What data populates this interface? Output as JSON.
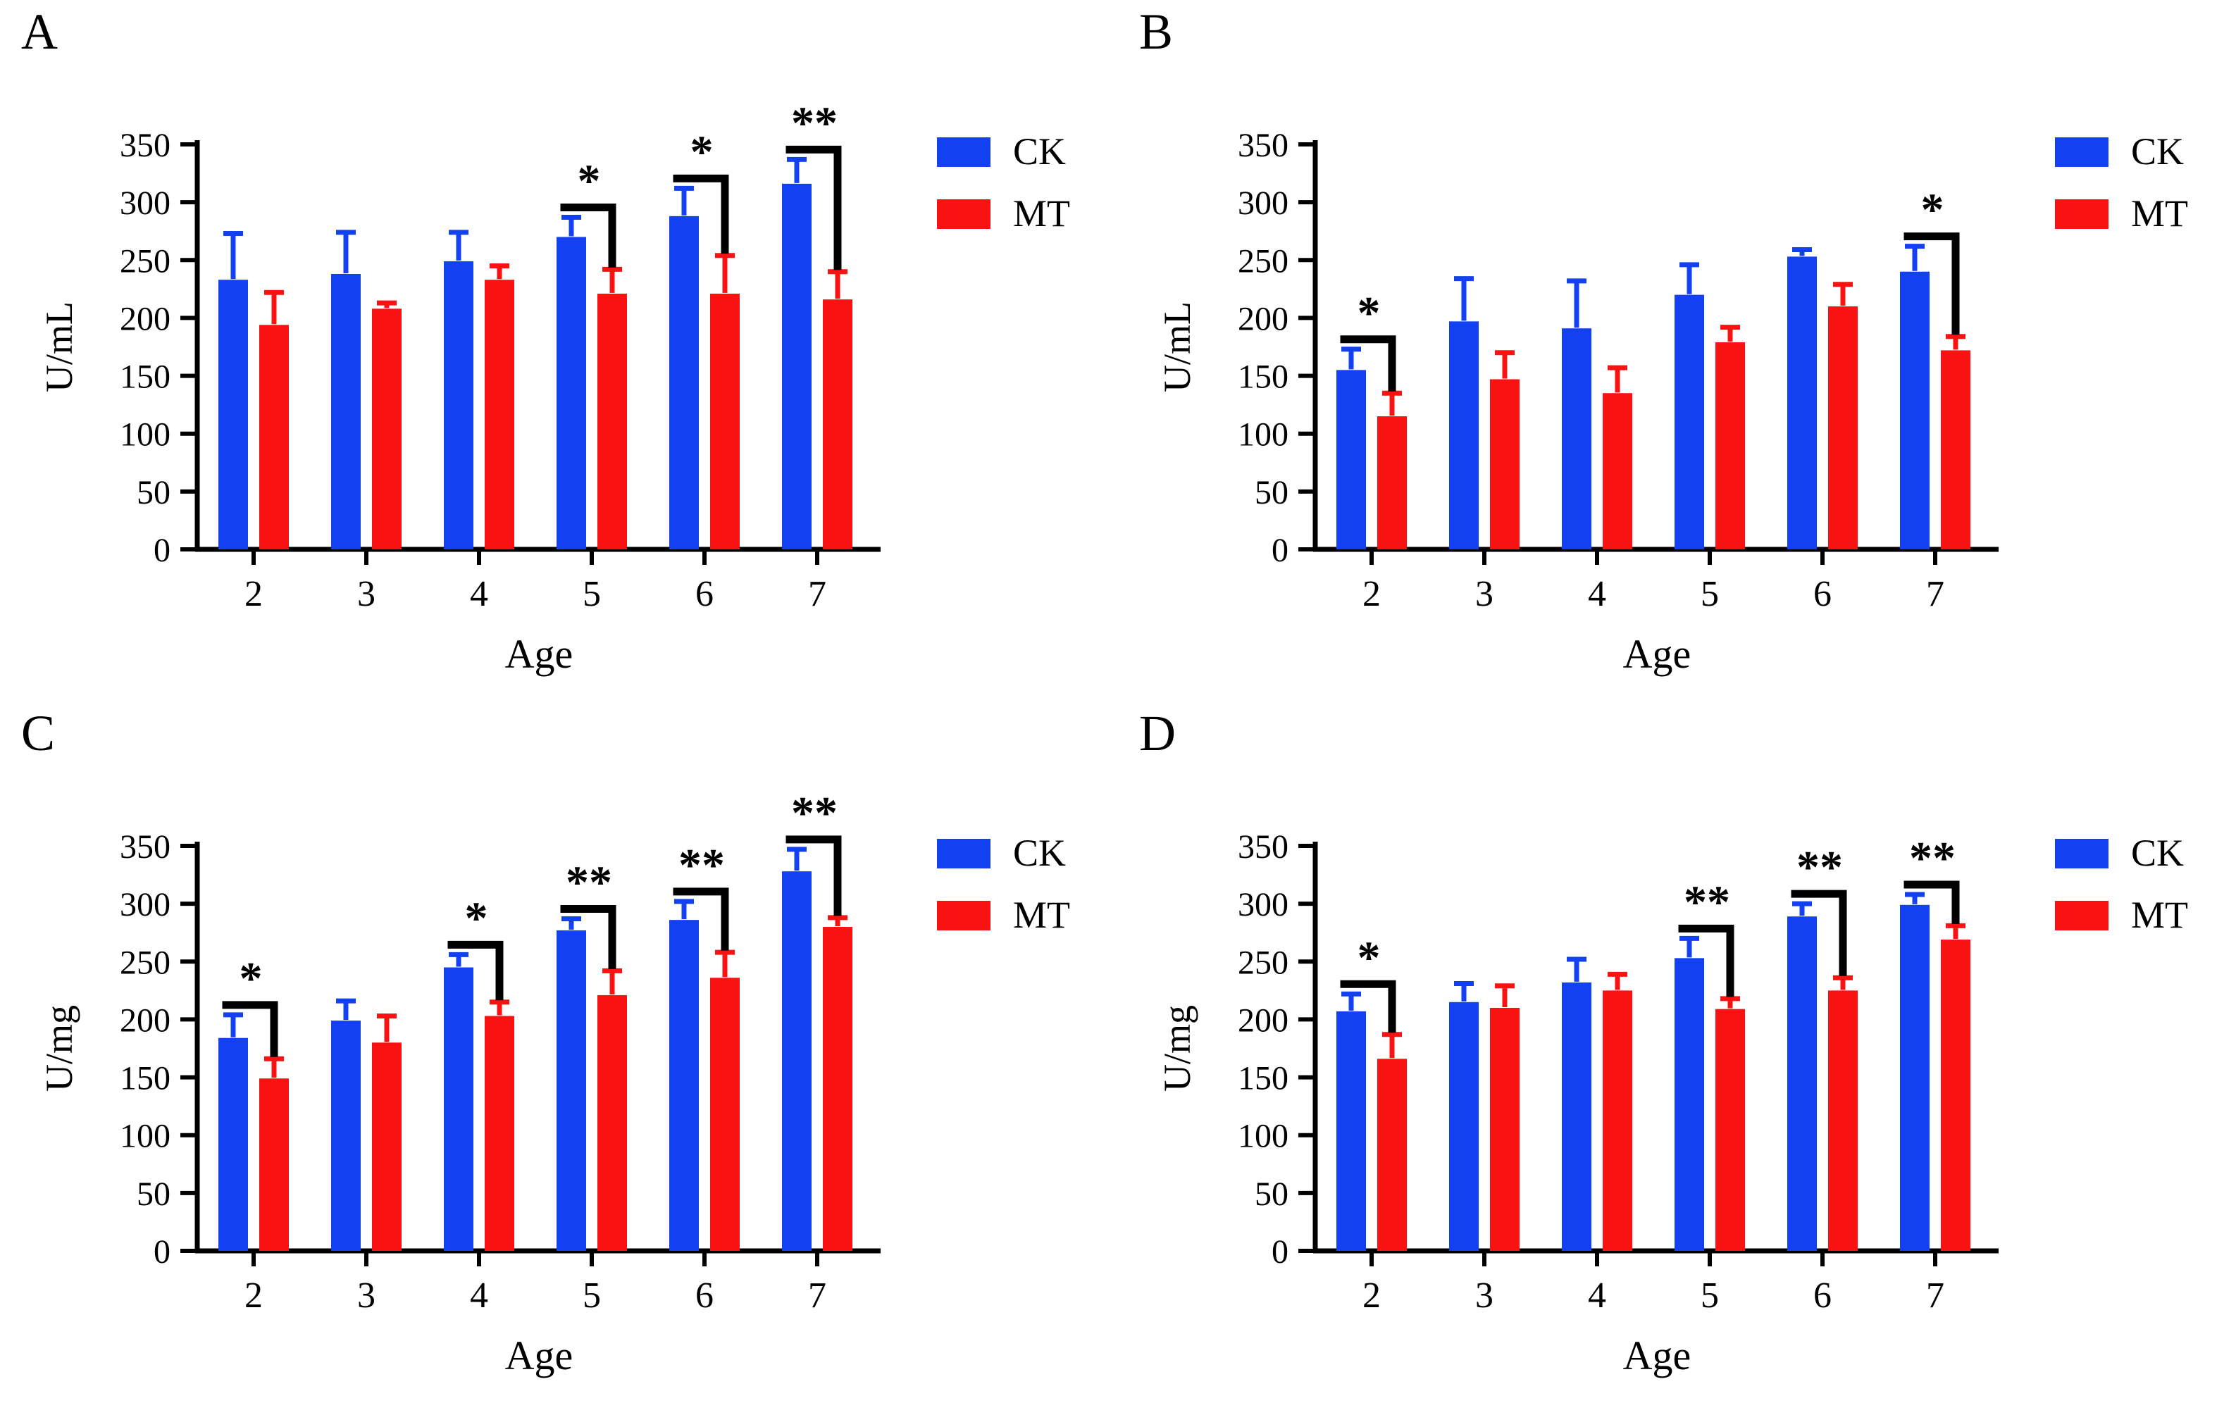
{
  "colors": {
    "ck": "#1340f0",
    "mt": "#f81212",
    "axis": "#000000",
    "sig": "#000000"
  },
  "legend": [
    {
      "key": "ck",
      "label": "CK"
    },
    {
      "key": "mt",
      "label": "MT"
    }
  ],
  "chart_data": [
    {
      "type": "bar",
      "panel_label": "A",
      "title": "",
      "ylabel": "U/mL",
      "xlabel": "Age",
      "ylim": [
        0,
        350
      ],
      "yticks": [
        0,
        50,
        100,
        150,
        200,
        250,
        300,
        350
      ],
      "categories": [
        "2",
        "3",
        "4",
        "5",
        "6",
        "7"
      ],
      "series": [
        {
          "name": "CK",
          "color_key": "ck",
          "values": [
            233,
            238,
            249,
            270,
            288,
            316
          ],
          "errors": [
            40,
            36,
            25,
            17,
            24,
            21
          ]
        },
        {
          "name": "MT",
          "color_key": "mt",
          "values": [
            194,
            208,
            233,
            221,
            221,
            216
          ],
          "errors": [
            28,
            5,
            12,
            21,
            33,
            24
          ]
        }
      ],
      "significance": [
        {
          "category": "5",
          "label": "*"
        },
        {
          "category": "6",
          "label": "*"
        },
        {
          "category": "7",
          "label": "**"
        }
      ],
      "legend_position": "right",
      "grid": false
    },
    {
      "type": "bar",
      "panel_label": "B",
      "title": "",
      "ylabel": "U/mL",
      "xlabel": "Age",
      "ylim": [
        0,
        350
      ],
      "yticks": [
        0,
        50,
        100,
        150,
        200,
        250,
        300,
        350
      ],
      "categories": [
        "2",
        "3",
        "4",
        "5",
        "6",
        "7"
      ],
      "series": [
        {
          "name": "CK",
          "color_key": "ck",
          "values": [
            155,
            197,
            191,
            220,
            253,
            240
          ],
          "errors": [
            18,
            37,
            41,
            26,
            6,
            22
          ]
        },
        {
          "name": "MT",
          "color_key": "mt",
          "values": [
            115,
            147,
            135,
            179,
            210,
            172
          ],
          "errors": [
            20,
            23,
            22,
            13,
            19,
            12
          ]
        }
      ],
      "significance": [
        {
          "category": "2",
          "label": "*"
        },
        {
          "category": "7",
          "label": "*"
        }
      ],
      "legend_position": "right",
      "grid": false
    },
    {
      "type": "bar",
      "panel_label": "C",
      "title": "",
      "ylabel": "U/mg",
      "xlabel": "Age",
      "ylim": [
        0,
        350
      ],
      "yticks": [
        0,
        50,
        100,
        150,
        200,
        250,
        300,
        350
      ],
      "categories": [
        "2",
        "3",
        "4",
        "5",
        "6",
        "7"
      ],
      "series": [
        {
          "name": "CK",
          "color_key": "ck",
          "values": [
            184,
            199,
            245,
            277,
            286,
            328
          ],
          "errors": [
            20,
            17,
            11,
            10,
            16,
            19
          ]
        },
        {
          "name": "MT",
          "color_key": "mt",
          "values": [
            149,
            180,
            203,
            221,
            236,
            280
          ],
          "errors": [
            17,
            23,
            12,
            21,
            22,
            8
          ]
        }
      ],
      "significance": [
        {
          "category": "2",
          "label": "*"
        },
        {
          "category": "4",
          "label": "*"
        },
        {
          "category": "5",
          "label": "**"
        },
        {
          "category": "6",
          "label": "**"
        },
        {
          "category": "7",
          "label": "**"
        }
      ],
      "legend_position": "right",
      "grid": false
    },
    {
      "type": "bar",
      "panel_label": "D",
      "title": "",
      "ylabel": "U/mg",
      "xlabel": "Age",
      "ylim": [
        0,
        350
      ],
      "yticks": [
        0,
        50,
        100,
        150,
        200,
        250,
        300,
        350
      ],
      "categories": [
        "2",
        "3",
        "4",
        "5",
        "6",
        "7"
      ],
      "series": [
        {
          "name": "CK",
          "color_key": "ck",
          "values": [
            207,
            215,
            232,
            253,
            289,
            299
          ],
          "errors": [
            15,
            16,
            20,
            17,
            11,
            9
          ]
        },
        {
          "name": "MT",
          "color_key": "mt",
          "values": [
            166,
            210,
            225,
            209,
            225,
            269
          ],
          "errors": [
            21,
            19,
            14,
            9,
            11,
            12
          ]
        }
      ],
      "significance": [
        {
          "category": "2",
          "label": "*"
        },
        {
          "category": "5",
          "label": "**"
        },
        {
          "category": "6",
          "label": "**"
        },
        {
          "category": "7",
          "label": "**"
        }
      ],
      "legend_position": "right",
      "grid": false
    }
  ]
}
